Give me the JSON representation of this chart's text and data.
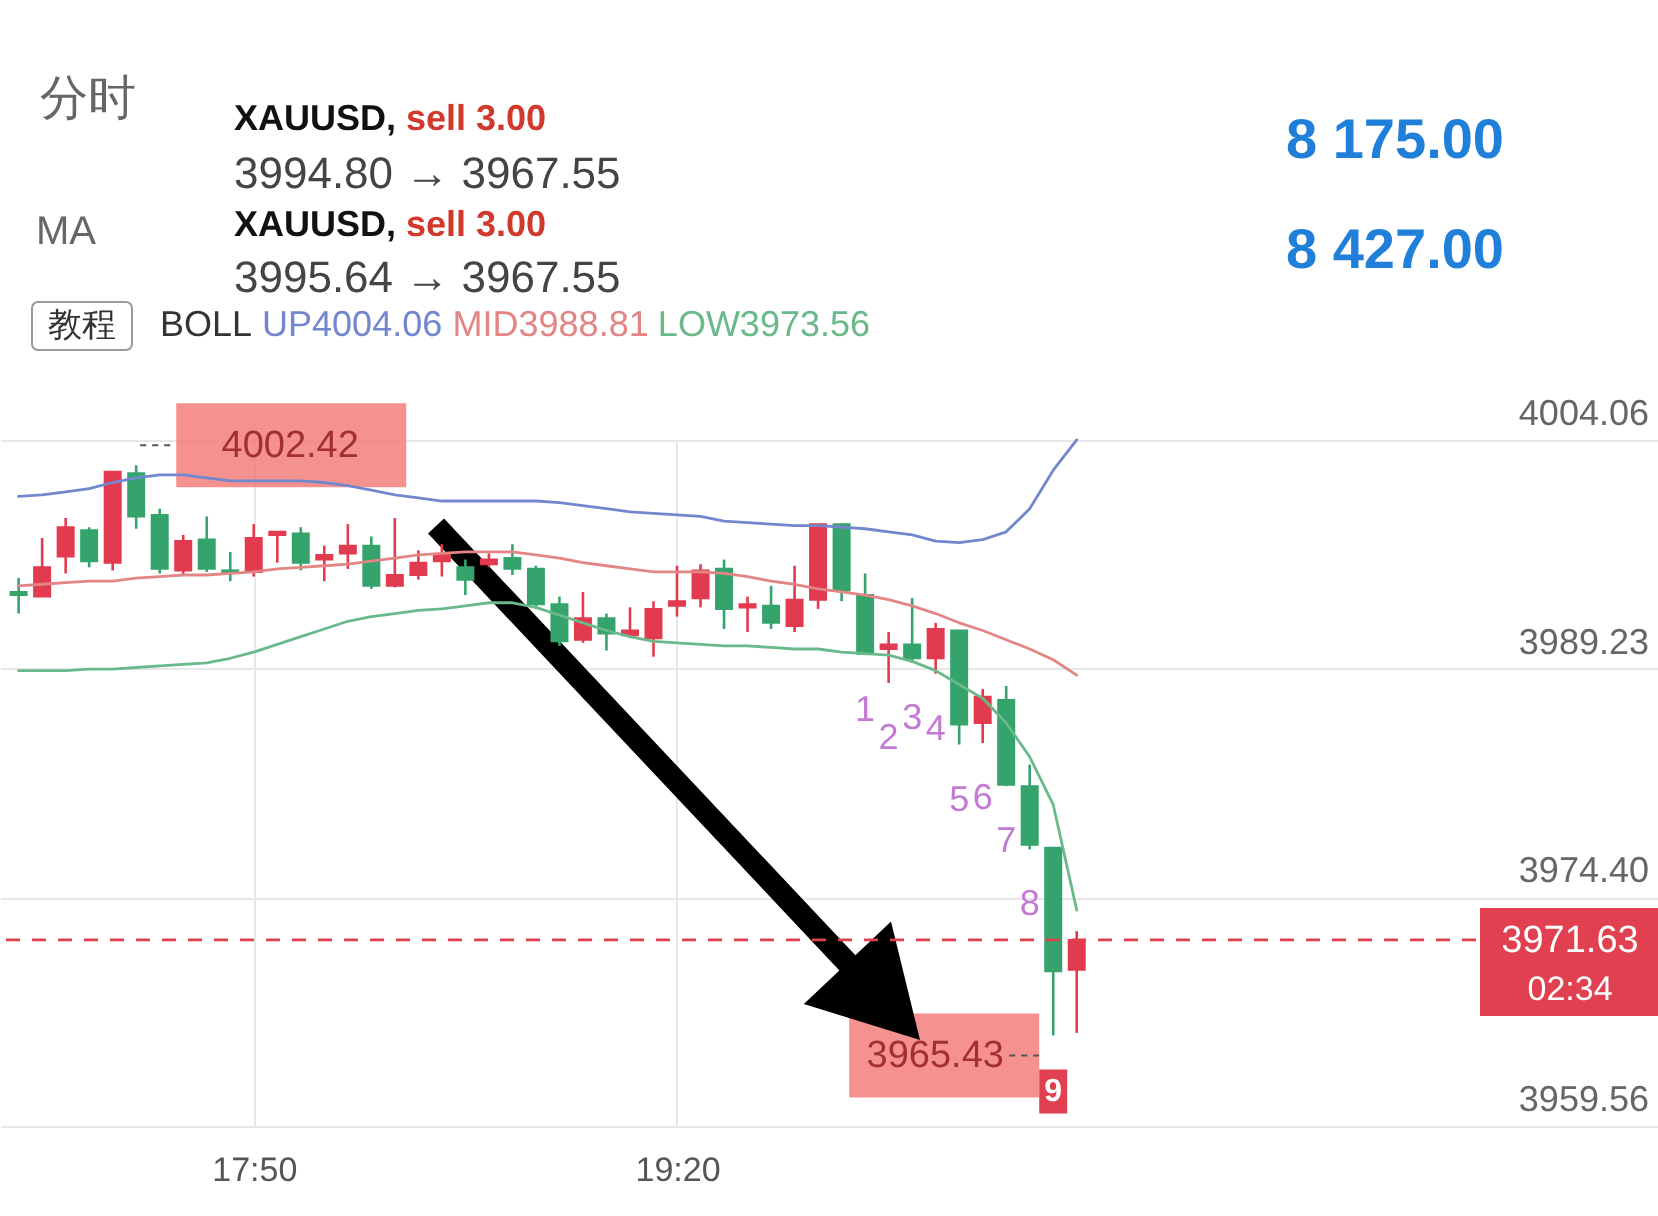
{
  "chart_data": {
    "type": "candlestick",
    "x": [
      17.0,
      17.0833,
      17.1667,
      17.25,
      17.3333,
      17.4167,
      17.5,
      17.5833,
      17.6667,
      17.75,
      17.8333,
      17.9167,
      18.0,
      18.0833,
      18.1667,
      18.25,
      18.3333,
      18.4167,
      18.5,
      18.5833,
      18.6667,
      18.75,
      18.8333,
      18.9167,
      19.0,
      19.0833,
      19.1667,
      19.25,
      19.3333,
      19.4167,
      19.5,
      19.5833,
      19.6667,
      19.75,
      19.8333,
      19.9167,
      20.0,
      20.0833,
      20.1667,
      20.25,
      20.3333,
      20.4167,
      20.5,
      20.5833,
      20.6667,
      20.75
    ],
    "ohlc": [
      [
        3994.2,
        3995.1,
        3992.8,
        3994.0
      ],
      [
        3993.9,
        3997.7,
        3993.9,
        3995.8
      ],
      [
        3996.5,
        3999.0,
        3995.4,
        3998.4
      ],
      [
        3998.2,
        3998.4,
        3995.8,
        3996.2
      ],
      [
        3996.1,
        4002.0,
        3995.6,
        4002.0
      ],
      [
        4001.9,
        4002.42,
        3998.3,
        3999.1
      ],
      [
        3999.2,
        3999.6,
        3995.4,
        3995.7
      ],
      [
        3995.6,
        3997.9,
        3995.3,
        3997.5
      ],
      [
        3997.6,
        3999.1,
        3995.5,
        3995.7
      ],
      [
        3995.6,
        3996.8,
        3994.9,
        3995.5
      ],
      [
        3995.5,
        3998.6,
        3995.2,
        3997.7
      ],
      [
        3997.9,
        3998.1,
        3996.1,
        3998.1
      ],
      [
        3998.0,
        3998.4,
        3995.6,
        3996.1
      ],
      [
        3996.3,
        3997.2,
        3994.9,
        3996.6
      ],
      [
        3996.7,
        3998.6,
        3995.7,
        3997.2
      ],
      [
        3997.2,
        3997.8,
        3994.4,
        3994.6
      ],
      [
        3994.6,
        3999.0,
        3994.5,
        3995.3
      ],
      [
        3995.3,
        3996.9,
        3995.0,
        3996.1
      ],
      [
        3996.2,
        3997.3,
        3995.2,
        3996.6
      ],
      [
        3995.8,
        3996.3,
        3994.0,
        3995.0
      ],
      [
        3996.0,
        3996.7,
        3995.8,
        3996.3
      ],
      [
        3996.4,
        3997.3,
        3995.3,
        3995.7
      ],
      [
        3995.7,
        3995.9,
        3993.1,
        3993.4
      ],
      [
        3993.4,
        3993.9,
        3990.7,
        3991.0
      ],
      [
        3991.1,
        3994.2,
        3990.9,
        3992.5
      ],
      [
        3992.5,
        3992.8,
        3990.4,
        3991.5
      ],
      [
        3991.4,
        3993.2,
        3991.2,
        3991.7
      ],
      [
        3991.2,
        3993.6,
        3990.0,
        3993.1
      ],
      [
        3993.3,
        3995.9,
        3992.6,
        3993.6
      ],
      [
        3993.8,
        3996.0,
        3993.2,
        3995.6
      ],
      [
        3995.7,
        3996.3,
        3991.8,
        3993.1
      ],
      [
        3993.2,
        3993.9,
        3991.6,
        3993.4
      ],
      [
        3993.3,
        3994.6,
        3991.8,
        3992.2
      ],
      [
        3992.0,
        3995.9,
        3991.6,
        3993.7
      ],
      [
        3993.7,
        3998.6,
        3993.1,
        3998.6
      ],
      [
        3998.6,
        3998.6,
        3993.6,
        3994.3
      ],
      [
        3994.0,
        3995.4,
        3990.1,
        3990.2
      ],
      [
        3990.5,
        3991.6,
        3988.3,
        3990.8
      ],
      [
        3990.8,
        3993.8,
        3989.6,
        3989.9
      ],
      [
        3989.9,
        3992.2,
        3988.9,
        3991.8
      ],
      [
        3991.7,
        3991.7,
        3984.3,
        3985.6
      ],
      [
        3985.7,
        3987.9,
        3984.4,
        3987.4
      ],
      [
        3987.2,
        3988.1,
        3981.6,
        3981.7
      ],
      [
        3981.6,
        3983.0,
        3977.5,
        3977.8
      ],
      [
        3977.6,
        3977.6,
        3965.43,
        3969.6
      ],
      [
        3969.7,
        3972.2,
        3965.6,
        3971.63
      ]
    ],
    "colors": [
      "#34a46c",
      "#e23a4e",
      "#e23a4e",
      "#34a46c",
      "#e23a4e",
      "#34a46c",
      "#34a46c",
      "#e23a4e",
      "#34a46c",
      "#34a46c",
      "#e23a4e",
      "#e23a4e",
      "#34a46c",
      "#e23a4e",
      "#e23a4e",
      "#34a46c",
      "#e23a4e",
      "#e23a4e",
      "#e23a4e",
      "#34a46c",
      "#e23a4e",
      "#34a46c",
      "#34a46c",
      "#34a46c",
      "#e23a4e",
      "#34a46c",
      "#e23a4e",
      "#e23a4e",
      "#e23a4e",
      "#e23a4e",
      "#34a46c",
      "#e23a4e",
      "#34a46c",
      "#e23a4e",
      "#e23a4e",
      "#34a46c",
      "#34a46c",
      "#e23a4e",
      "#34a46c",
      "#e23a4e",
      "#34a46c",
      "#e23a4e",
      "#34a46c",
      "#34a46c",
      "#34a46c",
      "#e23a4e"
    ],
    "series": [
      {
        "name": "UP4004.06",
        "type": "line",
        "color": "#7387cf",
        "values": [
          4000.4,
          4000.5,
          4000.7,
          4000.9,
          4001.3,
          4001.6,
          4001.8,
          4001.8,
          4001.6,
          4001.4,
          4001.4,
          4001.4,
          4001.4,
          4001.3,
          4001.1,
          4000.8,
          4000.5,
          4000.3,
          4000.1,
          4000.1,
          4000.1,
          4000.1,
          4000.1,
          4000.0,
          3999.8,
          3999.6,
          3999.4,
          3999.3,
          3999.2,
          3999.1,
          3998.8,
          3998.7,
          3998.6,
          3998.5,
          3998.5,
          3998.4,
          3998.3,
          3998.1,
          3997.9,
          3997.5,
          3997.4,
          3997.6,
          3998.1,
          3999.6,
          4002.1,
          4004.06
        ]
      },
      {
        "name": "MID3988.81",
        "type": "line",
        "color": "#e38585",
        "values": [
          3994.6,
          3994.7,
          3994.8,
          3994.9,
          3994.9,
          3995.1,
          3995.2,
          3995.3,
          3995.3,
          3995.4,
          3995.5,
          3995.7,
          3995.8,
          3995.9,
          3996.0,
          3996.2,
          3996.4,
          3996.6,
          3996.7,
          3996.8,
          3996.8,
          3996.8,
          3996.6,
          3996.4,
          3996.1,
          3995.9,
          3995.7,
          3995.5,
          3995.5,
          3995.5,
          3995.4,
          3995.2,
          3994.9,
          3994.7,
          3994.4,
          3994.2,
          3994.0,
          3993.7,
          3993.3,
          3992.8,
          3992.2,
          3991.7,
          3991.1,
          3990.5,
          3989.8,
          3988.81
        ]
      },
      {
        "name": "LOW3973.56",
        "type": "line",
        "color": "#6ab98a",
        "values": [
          3989.1,
          3989.1,
          3989.1,
          3989.2,
          3989.2,
          3989.3,
          3989.4,
          3989.5,
          3989.6,
          3989.9,
          3990.3,
          3990.8,
          3991.3,
          3991.8,
          3992.3,
          3992.6,
          3992.8,
          3993.0,
          3993.1,
          3993.3,
          3993.5,
          3993.5,
          3993.2,
          3992.7,
          3992.2,
          3991.7,
          3991.3,
          3991.0,
          3990.9,
          3990.8,
          3990.7,
          3990.7,
          3990.6,
          3990.5,
          3990.5,
          3990.3,
          3990.2,
          3990.1,
          3989.7,
          3989.1,
          3988.2,
          3987.3,
          3985.7,
          3983.5,
          3980.4,
          3973.56
        ]
      }
    ],
    "xlim": [
      16.934,
      22.81
    ],
    "ylim": [
      3953.72,
      4032.6
    ],
    "xticks": [
      {
        "value": 17.8333,
        "label": "17:50"
      },
      {
        "value": 19.3333,
        "label": "19:20"
      }
    ],
    "yticks": [
      4004.06,
      3989.23,
      {
        "value": 3974.4,
        "label": "3974.40"
      },
      3959.56
    ],
    "grid": true,
    "legend": "top left",
    "legend_title": "BOLL",
    "ref_lines": [
      {
        "axis": "y",
        "value": 3971.63,
        "color": "#e0404f",
        "line_style": "dashed"
      }
    ],
    "annotations": [
      "分时",
      "MA",
      "XAUUSD,",
      "sell 3.00",
      "3994.80 → 3967.55",
      "XAUUSD,",
      "sell 3.00",
      "3995.64 → 3967.55",
      "8 175.00",
      "8 427.00",
      "教程",
      "3971.63",
      "02:34",
      "4002.42",
      "3965.43",
      "1",
      "2",
      "3",
      "4",
      "5",
      "6",
      "7",
      "8",
      "9"
    ]
  }
}
